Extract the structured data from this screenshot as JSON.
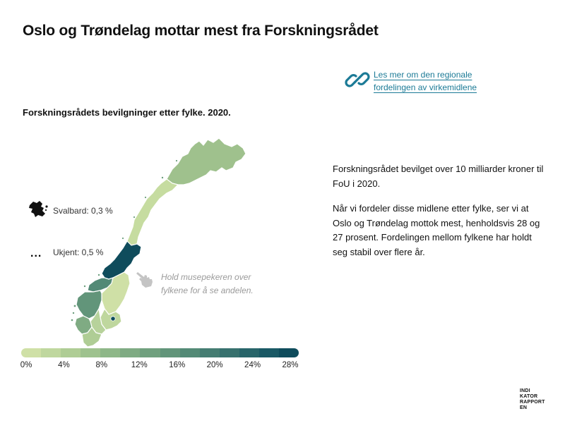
{
  "title": "Oslo og Trøndelag mottar mest fra Forskningsrådet",
  "link": {
    "text": "Les mer om den regionale fordelingen av virkemidlene",
    "icon": "chain-link-icon",
    "color": "#1b7a96"
  },
  "subtitle": "Forskningsrådets bevilgninger etter fylke. 2020.",
  "map": {
    "svalbard_label": "Svalbard: 0,3 %",
    "unknown_label": "Ukjent: 0,5 %",
    "unknown_marker": "...",
    "hover_hint": "Hold musepekeren over fylkene for å se andelen.",
    "hover_icon": "pointing-hand-icon"
  },
  "legend": {
    "ticks": [
      "0%",
      "4%",
      "8%",
      "12%",
      "16%",
      "20%",
      "24%",
      "28%"
    ],
    "colors": [
      "#cfe0a6",
      "#bfd79e",
      "#afcd95",
      "#9ec28e",
      "#8eb788",
      "#7fab83",
      "#70a07e",
      "#62957a",
      "#538a76",
      "#457d72",
      "#37716e",
      "#28656a",
      "#1a5965",
      "#0f4c5c"
    ]
  },
  "body": {
    "paragraph1": "Forskningsrådet bevilget over 10 milliarder kroner til FoU i 2020.",
    "paragraph2": "Når vi fordeler disse midlene etter fylke, ser vi at Oslo og Trøndelag mottok mest, henholdsvis 28 og 27 prosent. Fordelingen mellom fylkene har holdt seg stabil over flere år."
  },
  "brand": "INDIKATORRAPPORTEN"
}
